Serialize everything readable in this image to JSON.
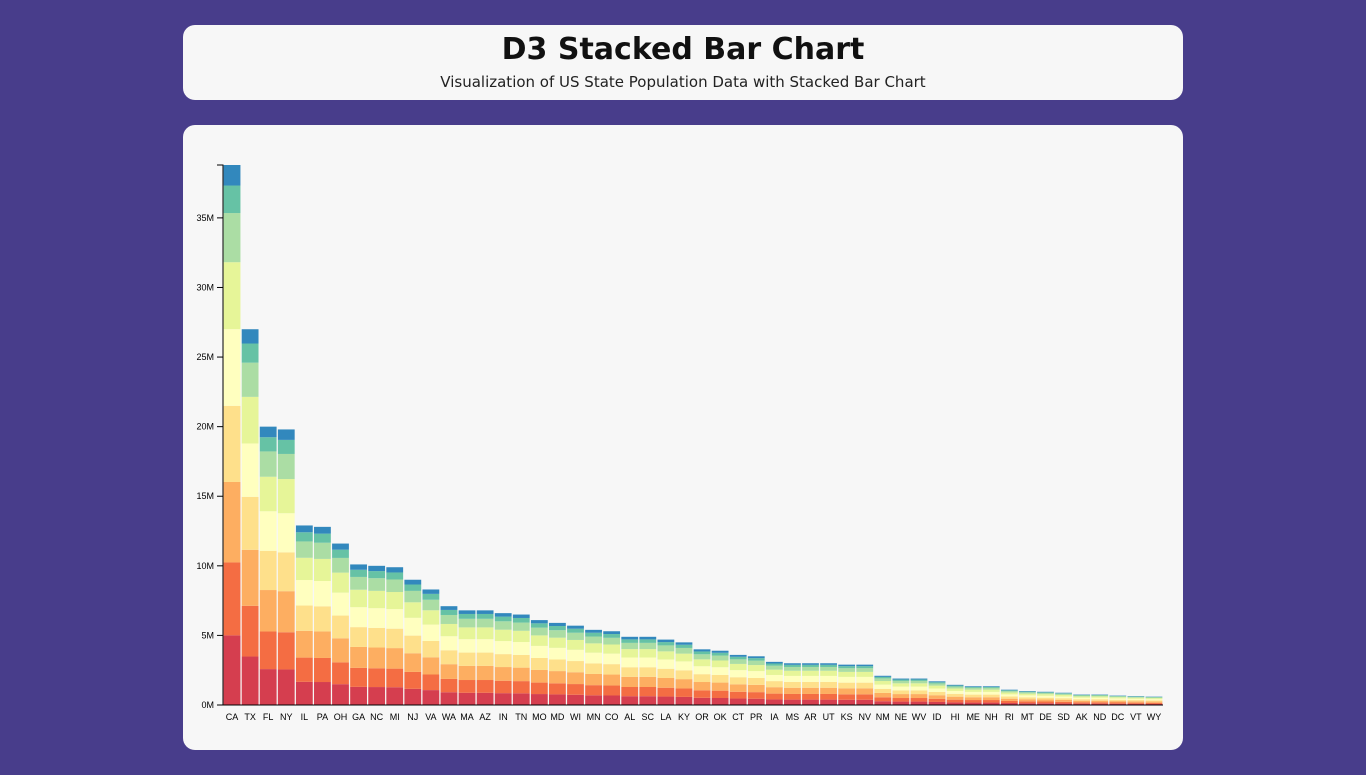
{
  "header": {
    "title": "D3 Stacked Bar Chart",
    "subtitle": "Visualization of US State Population Data with Stacked Bar Chart"
  },
  "chart_data": {
    "type": "bar",
    "stacked": true,
    "title": "",
    "xlabel": "",
    "ylabel": "",
    "ylim": [
      0,
      38800000
    ],
    "y_ticks": [
      0,
      5000000,
      10000000,
      15000000,
      20000000,
      25000000,
      30000000,
      35000000
    ],
    "y_tick_labels": [
      "0M",
      "5M",
      "10M",
      "15M",
      "20M",
      "25M",
      "30M",
      "35M"
    ],
    "grid": false,
    "legend": "none",
    "segment_colors": [
      "#d53e4f",
      "#f46d43",
      "#fdae61",
      "#fee08b",
      "#ffffbf",
      "#e6f598",
      "#abdda4",
      "#66c2a5",
      "#3288bd"
    ],
    "states": [
      {
        "state": "CA",
        "total": 38800000
      },
      {
        "state": "TX",
        "total": 27000000
      },
      {
        "state": "FL",
        "total": 20000000
      },
      {
        "state": "NY",
        "total": 19800000
      },
      {
        "state": "IL",
        "total": 12900000
      },
      {
        "state": "PA",
        "total": 12800000
      },
      {
        "state": "OH",
        "total": 11600000
      },
      {
        "state": "GA",
        "total": 10100000
      },
      {
        "state": "NC",
        "total": 10000000
      },
      {
        "state": "MI",
        "total": 9900000
      },
      {
        "state": "NJ",
        "total": 9000000
      },
      {
        "state": "VA",
        "total": 8300000
      },
      {
        "state": "WA",
        "total": 7100000
      },
      {
        "state": "MA",
        "total": 6800000
      },
      {
        "state": "AZ",
        "total": 6800000
      },
      {
        "state": "IN",
        "total": 6600000
      },
      {
        "state": "TN",
        "total": 6500000
      },
      {
        "state": "MO",
        "total": 6100000
      },
      {
        "state": "MD",
        "total": 5900000
      },
      {
        "state": "WI",
        "total": 5700000
      },
      {
        "state": "MN",
        "total": 5400000
      },
      {
        "state": "CO",
        "total": 5300000
      },
      {
        "state": "AL",
        "total": 4900000
      },
      {
        "state": "SC",
        "total": 4900000
      },
      {
        "state": "LA",
        "total": 4700000
      },
      {
        "state": "KY",
        "total": 4500000
      },
      {
        "state": "OR",
        "total": 4000000
      },
      {
        "state": "OK",
        "total": 3900000
      },
      {
        "state": "CT",
        "total": 3600000
      },
      {
        "state": "PR",
        "total": 3500000
      },
      {
        "state": "IA",
        "total": 3100000
      },
      {
        "state": "MS",
        "total": 3000000
      },
      {
        "state": "AR",
        "total": 3000000
      },
      {
        "state": "UT",
        "total": 3000000
      },
      {
        "state": "KS",
        "total": 2900000
      },
      {
        "state": "NV",
        "total": 2900000
      },
      {
        "state": "NM",
        "total": 2100000
      },
      {
        "state": "NE",
        "total": 1900000
      },
      {
        "state": "WV",
        "total": 1900000
      },
      {
        "state": "ID",
        "total": 1700000
      },
      {
        "state": "HI",
        "total": 1450000
      },
      {
        "state": "ME",
        "total": 1350000
      },
      {
        "state": "NH",
        "total": 1350000
      },
      {
        "state": "RI",
        "total": 1100000
      },
      {
        "state": "MT",
        "total": 1000000
      },
      {
        "state": "DE",
        "total": 950000
      },
      {
        "state": "SD",
        "total": 880000
      },
      {
        "state": "AK",
        "total": 750000
      },
      {
        "state": "ND",
        "total": 750000
      },
      {
        "state": "DC",
        "total": 680000
      },
      {
        "state": "VT",
        "total": 640000
      },
      {
        "state": "WY",
        "total": 600000
      }
    ],
    "segment_shares": [
      0.129,
      0.135,
      0.149,
      0.141,
      0.142,
      0.124,
      0.091,
      0.051,
      0.038
    ]
  }
}
